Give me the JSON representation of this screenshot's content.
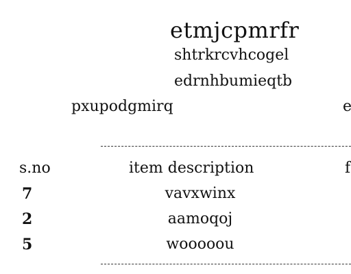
{
  "header": {
    "title": "etmjcpmrfr",
    "line1": "shtrkrcvhcogel",
    "line2": "edrnhbumieqtb",
    "left_label": "pxupodgmirq",
    "right_clipped": "e"
  },
  "table": {
    "columns": [
      "s.no",
      "item description",
      "f"
    ],
    "rows": [
      {
        "sno": "7",
        "item": "vavxwinx"
      },
      {
        "sno": "2",
        "item": "aamoqoj"
      },
      {
        "sno": "5",
        "item": "wooooou"
      }
    ]
  }
}
